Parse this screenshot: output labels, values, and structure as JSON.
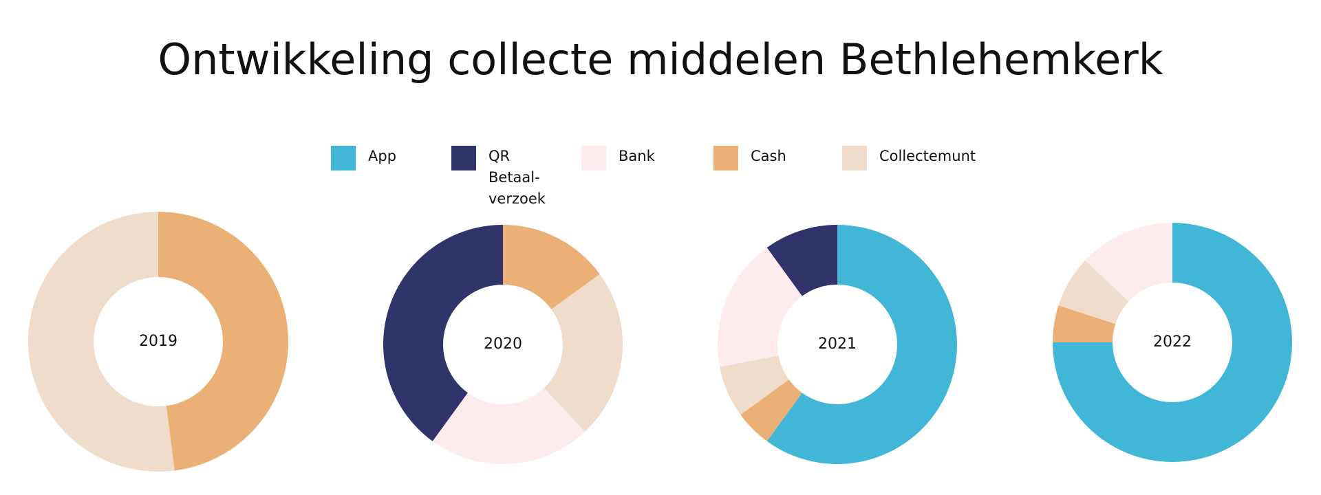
{
  "title": "Ontwikkeling collecte middelen Bethlehemkerk",
  "legend": {
    "categories": [
      "App",
      "QR Betaal-verzoek",
      "Bank",
      "Cash",
      "Collectemunt"
    ],
    "colors": [
      "#41b6d6",
      "#31336b",
      "#fdebed",
      "#ebb076",
      "#f0dccb"
    ]
  },
  "chart_data": [
    {
      "type": "donut",
      "title": "2019",
      "values": [
        0,
        0,
        0,
        48,
        52
      ]
    },
    {
      "type": "donut",
      "title": "2020",
      "values": [
        0,
        40,
        22,
        15,
        23
      ]
    },
    {
      "type": "donut",
      "title": "2021",
      "values": [
        60,
        10,
        18,
        5,
        7
      ]
    },
    {
      "type": "donut",
      "title": "2022",
      "values": [
        75,
        0,
        13,
        5,
        7
      ]
    }
  ]
}
